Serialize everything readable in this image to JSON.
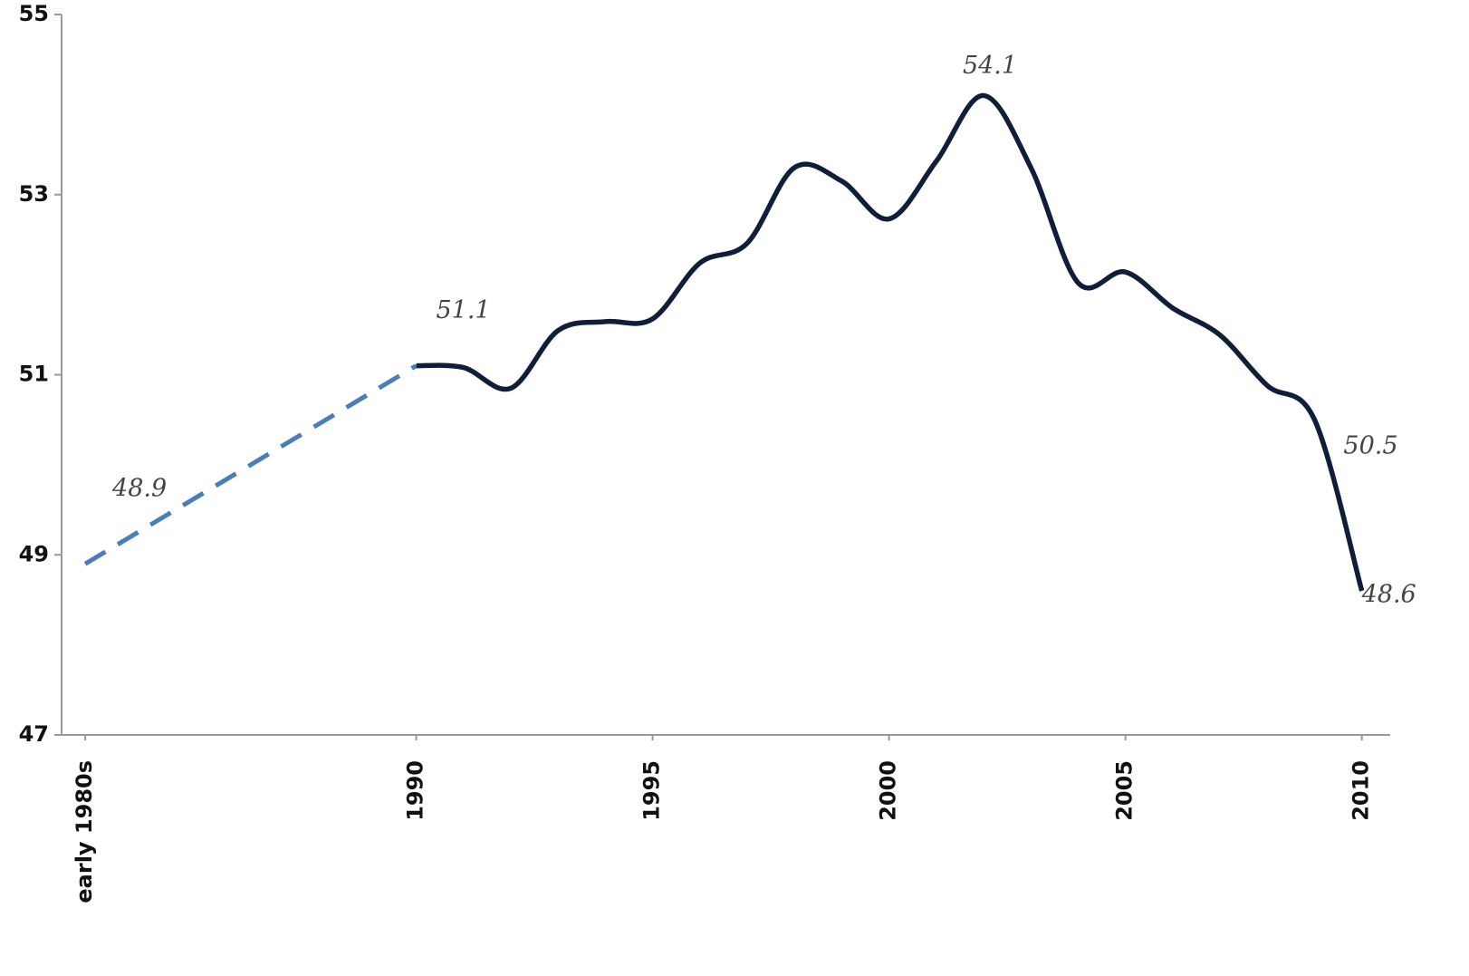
{
  "chart_data": {
    "type": "line",
    "x": [
      1983,
      1990,
      1991,
      1992,
      1993,
      1994,
      1995,
      1996,
      1997,
      1998,
      1999,
      2000,
      2001,
      2002,
      2003,
      2004,
      2005,
      2006,
      2007,
      2008,
      2009,
      2010
    ],
    "series": [
      {
        "color": "#4a7ebb",
        "dashed": true,
        "values": [
          48.9,
          51.1,
          null,
          null,
          null,
          null,
          null,
          null,
          null,
          null,
          null,
          null,
          null,
          null,
          null,
          null,
          null,
          null,
          null,
          null,
          null,
          null
        ],
        "value_labels": [
          "48.9",
          null,
          null,
          null,
          null,
          null,
          null,
          null,
          null,
          null,
          null,
          null,
          null,
          null,
          null,
          null,
          null,
          null,
          null,
          null,
          null,
          null
        ]
      },
      {
        "color": "#0f1f3a",
        "dashed": false,
        "values": [
          null,
          51.1,
          51.08,
          50.85,
          51.49,
          51.59,
          51.62,
          52.24,
          52.46,
          53.3,
          53.15,
          52.73,
          53.37,
          54.1,
          53.3,
          52.02,
          52.14,
          51.74,
          51.44,
          50.88,
          50.5,
          48.6
        ],
        "value_labels": [
          null,
          "51.1",
          null,
          null,
          null,
          null,
          null,
          null,
          null,
          null,
          null,
          null,
          null,
          "54.1",
          null,
          null,
          null,
          null,
          null,
          null,
          "50.5",
          "48.6"
        ]
      }
    ],
    "xlim": [
      1982.5,
      2010.6
    ],
    "xticks": [
      {
        "value": 1983,
        "label": "early 1980s"
      },
      1990,
      1995,
      2000,
      2005,
      2010
    ],
    "ylim": [
      47,
      55
    ],
    "yticks": [
      47,
      49,
      51,
      53,
      55
    ],
    "grid": false
  }
}
